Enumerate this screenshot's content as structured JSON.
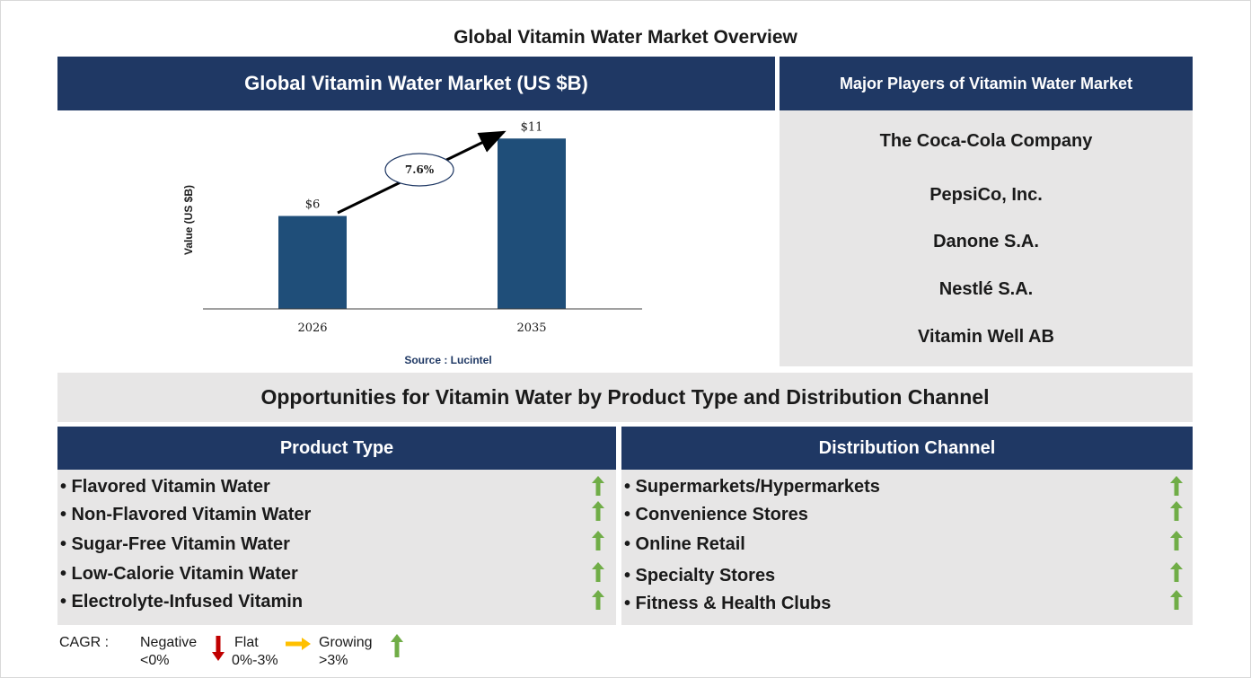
{
  "title": "Global Vitamin Water Market Overview",
  "chart_panel": {
    "header": "Global Vitamin Water Market (US $B)",
    "source": "Source : Lucintel"
  },
  "chart_data": {
    "type": "bar",
    "categories": [
      "2026",
      "2035"
    ],
    "values": [
      6,
      11
    ],
    "value_labels": [
      "$6",
      "$11"
    ],
    "ylabel": "Value (US $B)",
    "ylim": [
      0,
      12
    ],
    "grid": false,
    "bar_color": "#1f4e79",
    "cagr_annotation": "7.6%"
  },
  "players": {
    "header": "Major Players of Vitamin Water Market",
    "items": [
      "The Coca-Cola Company",
      "PepsiCo, Inc.",
      "Danone S.A.",
      "Nestlé S.A.",
      "Vitamin Well AB"
    ]
  },
  "opportunities": {
    "title": "Opportunities for Vitamin Water by Product Type and Distribution Channel"
  },
  "product_type": {
    "header": "Product Type",
    "items": [
      "• Flavored Vitamin Water",
      "• Non-Flavored Vitamin Water",
      "• Sugar-Free Vitamin Water",
      "• Low-Calorie Vitamin Water",
      "• Electrolyte-Infused Vitamin"
    ],
    "trend_icon": "green-up-arrow-icon"
  },
  "distribution_channel": {
    "header": "Distribution Channel",
    "items": [
      "• Supermarkets/Hypermarkets",
      "• Convenience Stores",
      "• Online Retail",
      "• Specialty Stores",
      "• Fitness & Health Clubs"
    ],
    "trend_icon": "green-up-arrow-icon"
  },
  "legend": {
    "label": "CAGR  :",
    "negative": {
      "name": "Negative",
      "range": "<0%",
      "icon": "red-down-arrow-icon",
      "color": "#c00000"
    },
    "flat": {
      "name": "Flat",
      "range": "0%-3%",
      "icon": "yellow-right-arrow-icon",
      "color": "#ffc000"
    },
    "growing": {
      "name": "Growing",
      "range": ">3%",
      "icon": "green-up-arrow-icon",
      "color": "#70ad47"
    }
  },
  "colors": {
    "navy": "#1f3864",
    "bar": "#1f4e79",
    "panel_gray": "#e7e6e6",
    "green": "#70ad47"
  }
}
